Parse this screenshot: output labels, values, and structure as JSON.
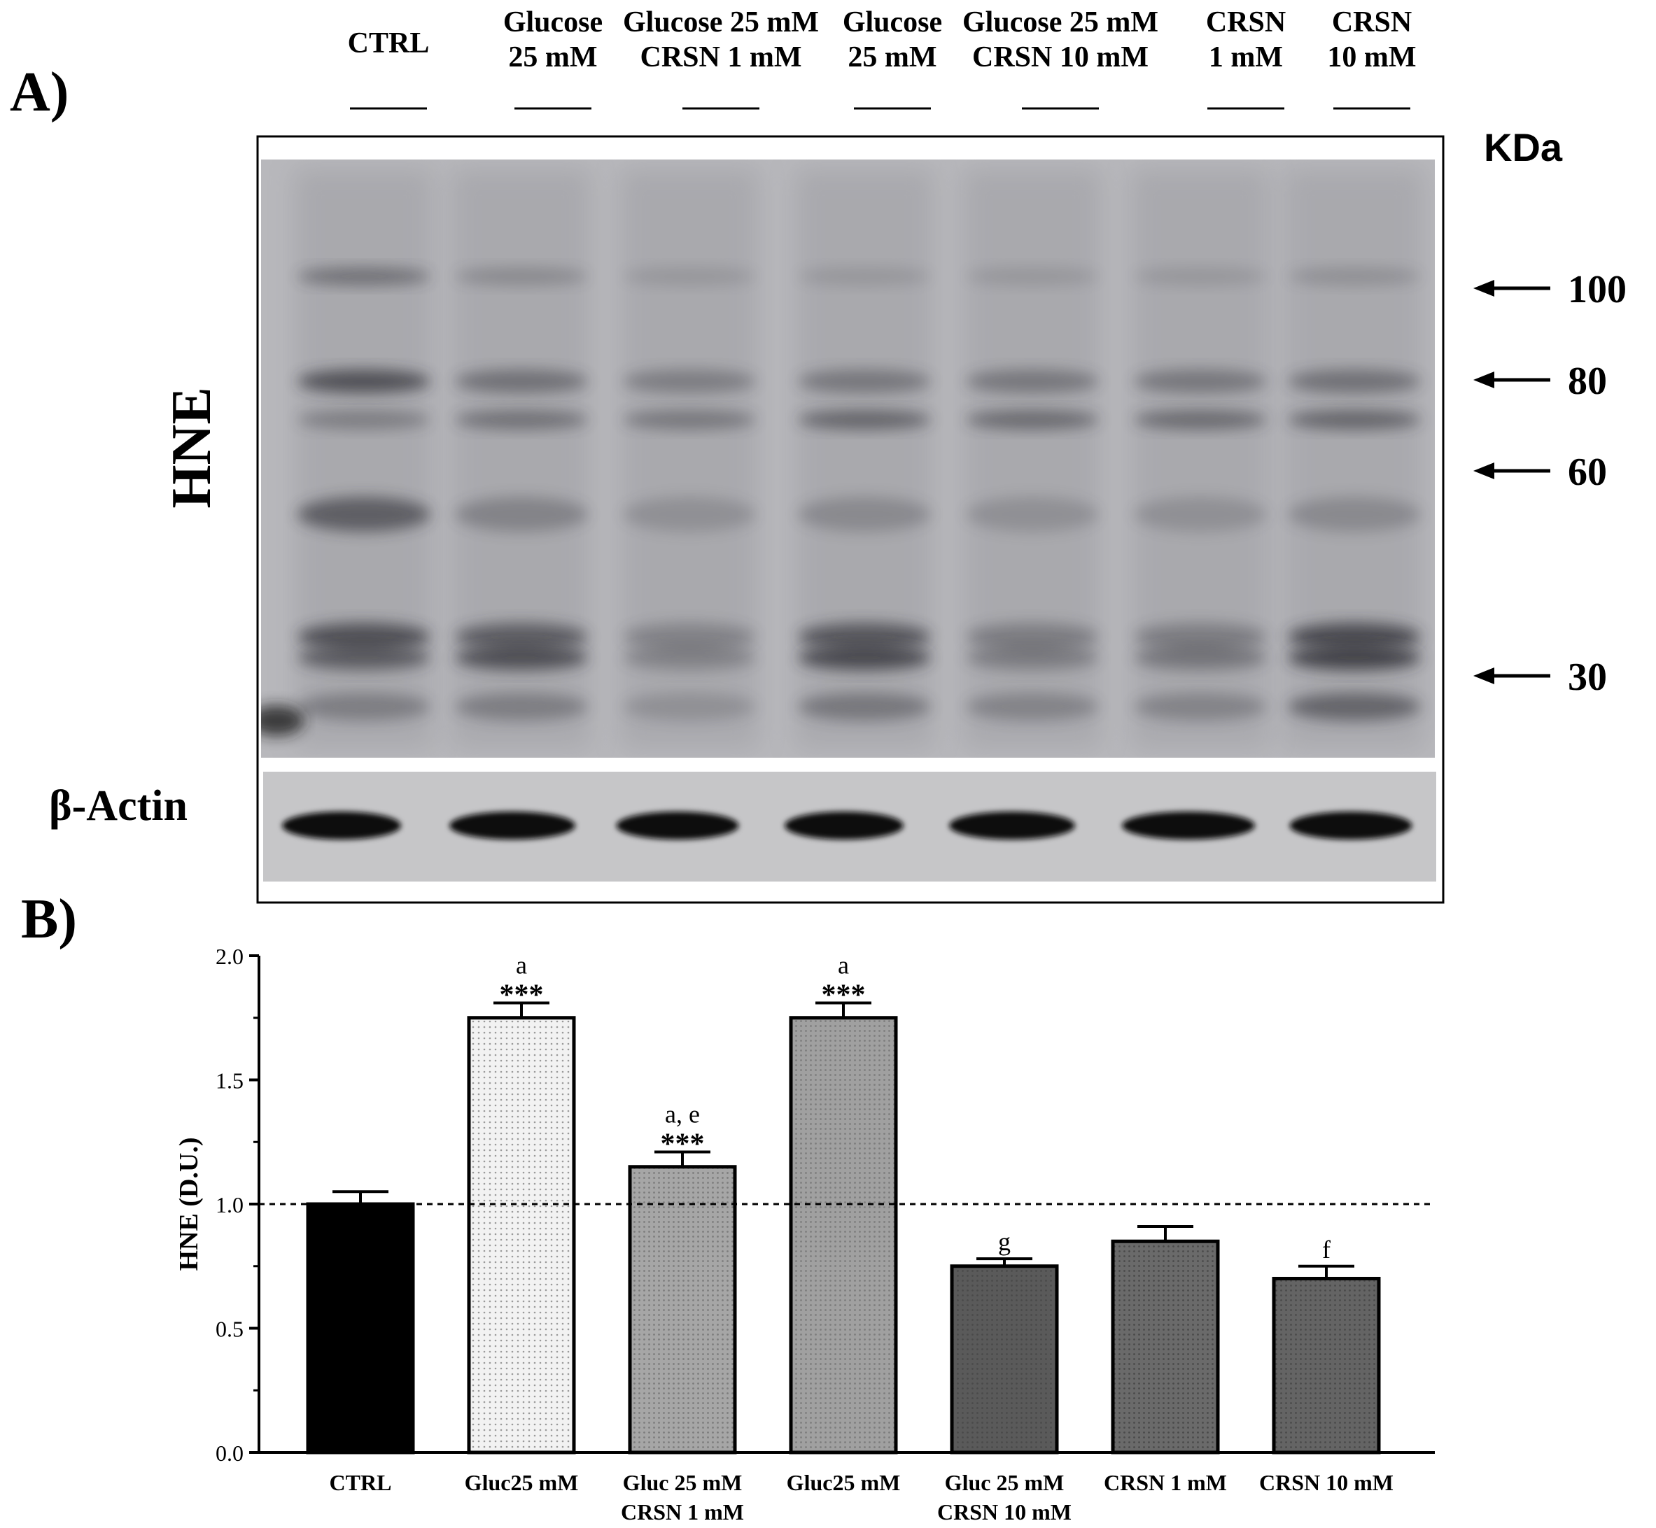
{
  "panel_a": {
    "label": "A)",
    "lane_headers": [
      [
        "CTRL"
      ],
      [
        "Glucose",
        "25 mM"
      ],
      [
        "Glucose 25 mM",
        "CRSN 1 mM"
      ],
      [
        "Glucose",
        "25 mM"
      ],
      [
        "Glucose 25 mM",
        "CRSN 10 mM"
      ],
      [
        "CRSN",
        "1 mM"
      ],
      [
        "CRSN",
        "10 mM"
      ]
    ],
    "blot_label": "HNE",
    "loading_label": "β-Actin",
    "kda_label": "KDa",
    "markers": [
      "100",
      "80",
      "60",
      "30"
    ]
  },
  "panel_b": {
    "label": "B)"
  },
  "chart_data": {
    "type": "bar",
    "title": "",
    "xlabel": "",
    "ylabel": "HNE (D.U.)",
    "ylim": [
      0,
      2.0
    ],
    "yticks": [
      "0.0",
      "0.5",
      "1.0",
      "1.5",
      "2.0"
    ],
    "reference_line": 1.0,
    "categories": [
      [
        "CTRL"
      ],
      [
        "Gluc25 mM"
      ],
      [
        "Gluc 25 mM",
        "CRSN 1 mM"
      ],
      [
        "Gluc25 mM"
      ],
      [
        "Gluc 25 mM",
        "CRSN 10 mM"
      ],
      [
        "CRSN 1 mM"
      ],
      [
        "CRSN 10 mM"
      ]
    ],
    "values": [
      1.0,
      1.75,
      1.15,
      1.75,
      0.75,
      0.85,
      0.7
    ],
    "errors": [
      0.05,
      0.06,
      0.06,
      0.06,
      0.03,
      0.06,
      0.05
    ],
    "significance": [
      "",
      "***",
      "***",
      "***",
      "",
      "",
      ""
    ],
    "letters": [
      "",
      "a",
      "a, e",
      "a",
      "g",
      "",
      "f"
    ],
    "bar_colors": [
      "#000000",
      "#f2f2f2",
      "#a6a6a6",
      "#a0a0a0",
      "#5a5a5a",
      "#6a6a6a",
      "#646464"
    ]
  }
}
